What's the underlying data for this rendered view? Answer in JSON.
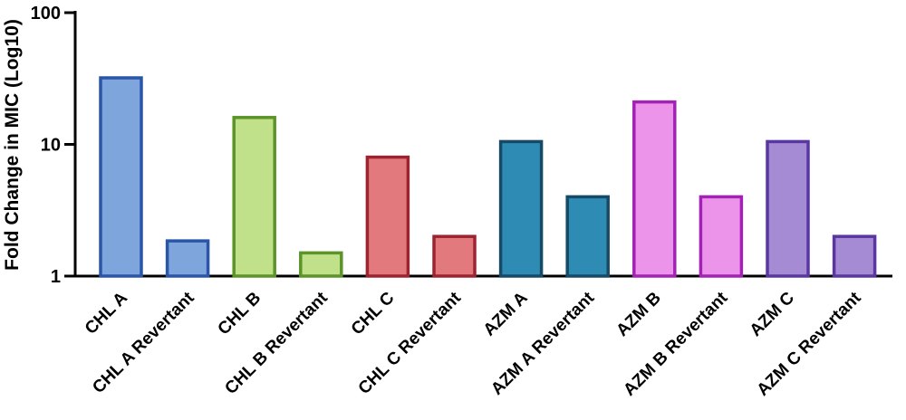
{
  "chart_data": {
    "type": "bar",
    "ylabel": "Fold Change in MIC (Log10)",
    "yscale": "log10",
    "ylim": [
      1,
      100
    ],
    "yticks": [
      {
        "value": 1,
        "label": "1"
      },
      {
        "value": 10,
        "label": "10"
      },
      {
        "value": 100,
        "label": "100"
      }
    ],
    "grid": false,
    "categories": [
      "CHL A",
      "CHL A Revertant",
      "CHL B",
      "CHL B Revertant",
      "CHL C",
      "CHL C Revertant",
      "AZM A",
      "AZM A Revertant",
      "AZM B",
      "AZM B Revertant",
      "AZM C",
      "AZM C Revertant"
    ],
    "values": [
      32,
      1.85,
      16,
      1.5,
      8,
      2,
      10.5,
      4,
      21,
      4,
      10.5,
      2
    ],
    "fill_colors": [
      "#7ea6dd",
      "#7ea6dd",
      "#c0e08a",
      "#c0e08a",
      "#e27a7d",
      "#e27a7d",
      "#2e8cb4",
      "#2e8cb4",
      "#ec94ea",
      "#ec94ea",
      "#a58bd4",
      "#a58bd4"
    ],
    "stroke_colors": [
      "#2a55a8",
      "#2a55a8",
      "#5b9428",
      "#5b9428",
      "#9d2330",
      "#9d2330",
      "#174a66",
      "#174a66",
      "#a322b5",
      "#a322b5",
      "#5a36a2",
      "#5a36a2"
    ]
  }
}
